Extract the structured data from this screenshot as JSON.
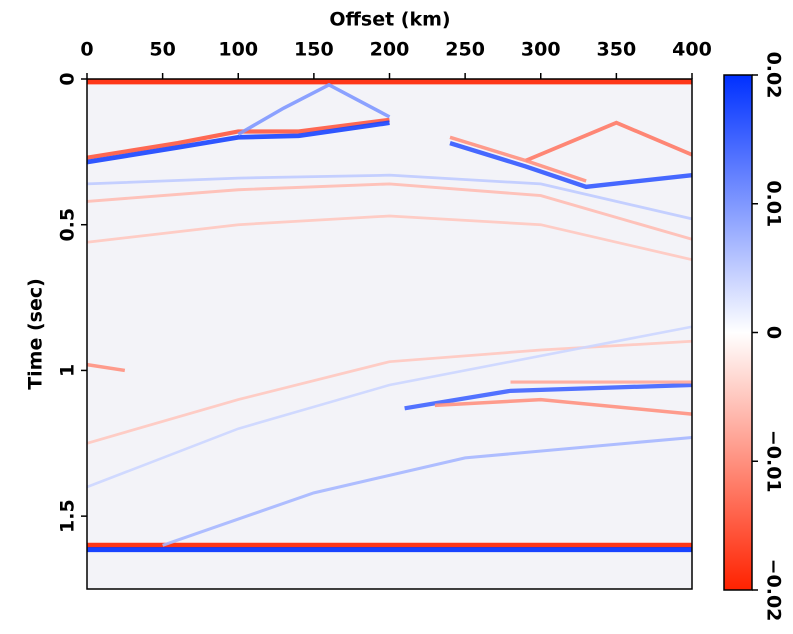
{
  "chart_data": {
    "type": "seismic-image",
    "x_label": "Offset (km)",
    "y_label": "Time (sec)",
    "xlim": [
      0,
      400
    ],
    "xticks": [
      0,
      50,
      100,
      150,
      200,
      250,
      300,
      350,
      400
    ],
    "ylim": [
      0,
      1.75
    ],
    "yticks": [
      0,
      0.5,
      1,
      1.5
    ],
    "clim": [
      -0.02,
      0.02
    ],
    "cticks": [
      {
        "value": -0.02,
        "label": "−0.02"
      },
      {
        "value": -0.01,
        "label": "−0.01"
      },
      0,
      {
        "value": 0.01,
        "label": "0.01"
      },
      {
        "value": 0.02,
        "label": "0.02"
      }
    ],
    "low_color": "#ff2200",
    "mid_color": "#ffffff",
    "high_color": "#0030ff",
    "events": [
      {
        "x": [
          0,
          400
        ],
        "y": [
          0.01,
          0.01
        ],
        "amplitude": -0.02
      },
      {
        "x": [
          0,
          400
        ],
        "y": [
          1.6,
          1.6
        ],
        "amplitude": -0.02
      },
      {
        "x": [
          0,
          400
        ],
        "y": [
          1.615,
          1.615
        ],
        "amplitude": 0.02
      },
      {
        "x": [
          0,
          60,
          100,
          140,
          200
        ],
        "y": [
          0.27,
          0.22,
          0.18,
          0.18,
          0.14
        ],
        "amplitude": -0.015
      },
      {
        "x": [
          0,
          60,
          100,
          140,
          200
        ],
        "y": [
          0.285,
          0.235,
          0.2,
          0.195,
          0.15
        ],
        "amplitude": 0.018
      },
      {
        "x": [
          100,
          130,
          160,
          200
        ],
        "y": [
          0.19,
          0.1,
          0.02,
          0.13
        ],
        "amplitude": 0.01
      },
      {
        "x": [
          240,
          290,
          330,
          400
        ],
        "y": [
          0.22,
          0.3,
          0.37,
          0.33
        ],
        "amplitude": 0.016
      },
      {
        "x": [
          290,
          350,
          400
        ],
        "y": [
          0.28,
          0.15,
          0.26
        ],
        "amplitude": -0.012
      },
      {
        "x": [
          240,
          290,
          330
        ],
        "y": [
          0.2,
          0.28,
          0.35
        ],
        "amplitude": -0.01
      },
      {
        "x": [
          0,
          100,
          200,
          300,
          400
        ],
        "y": [
          0.42,
          0.38,
          0.36,
          0.4,
          0.55
        ],
        "amplitude": -0.006
      },
      {
        "x": [
          0,
          100,
          200,
          300,
          400
        ],
        "y": [
          0.56,
          0.5,
          0.47,
          0.5,
          0.62
        ],
        "amplitude": -0.005
      },
      {
        "x": [
          0,
          100,
          200,
          300,
          400
        ],
        "y": [
          0.36,
          0.34,
          0.33,
          0.36,
          0.48
        ],
        "amplitude": 0.005
      },
      {
        "x": [
          0,
          25
        ],
        "y": [
          0.98,
          1.0
        ],
        "amplitude": -0.01
      },
      {
        "x": [
          0,
          100,
          200,
          300,
          400
        ],
        "y": [
          1.25,
          1.1,
          0.97,
          0.93,
          0.9
        ],
        "amplitude": -0.005
      },
      {
        "x": [
          210,
          280,
          400
        ],
        "y": [
          1.13,
          1.07,
          1.05
        ],
        "amplitude": 0.015
      },
      {
        "x": [
          230,
          300,
          400
        ],
        "y": [
          1.12,
          1.1,
          1.15
        ],
        "amplitude": -0.01
      },
      {
        "x": [
          280,
          400
        ],
        "y": [
          1.04,
          1.04
        ],
        "amplitude": -0.008
      },
      {
        "x": [
          50,
          150,
          250,
          400
        ],
        "y": [
          1.6,
          1.42,
          1.3,
          1.23
        ],
        "amplitude": 0.007
      },
      {
        "x": [
          0,
          100,
          200,
          400
        ],
        "y": [
          1.4,
          1.2,
          1.05,
          0.85
        ],
        "amplitude": 0.004
      }
    ]
  }
}
